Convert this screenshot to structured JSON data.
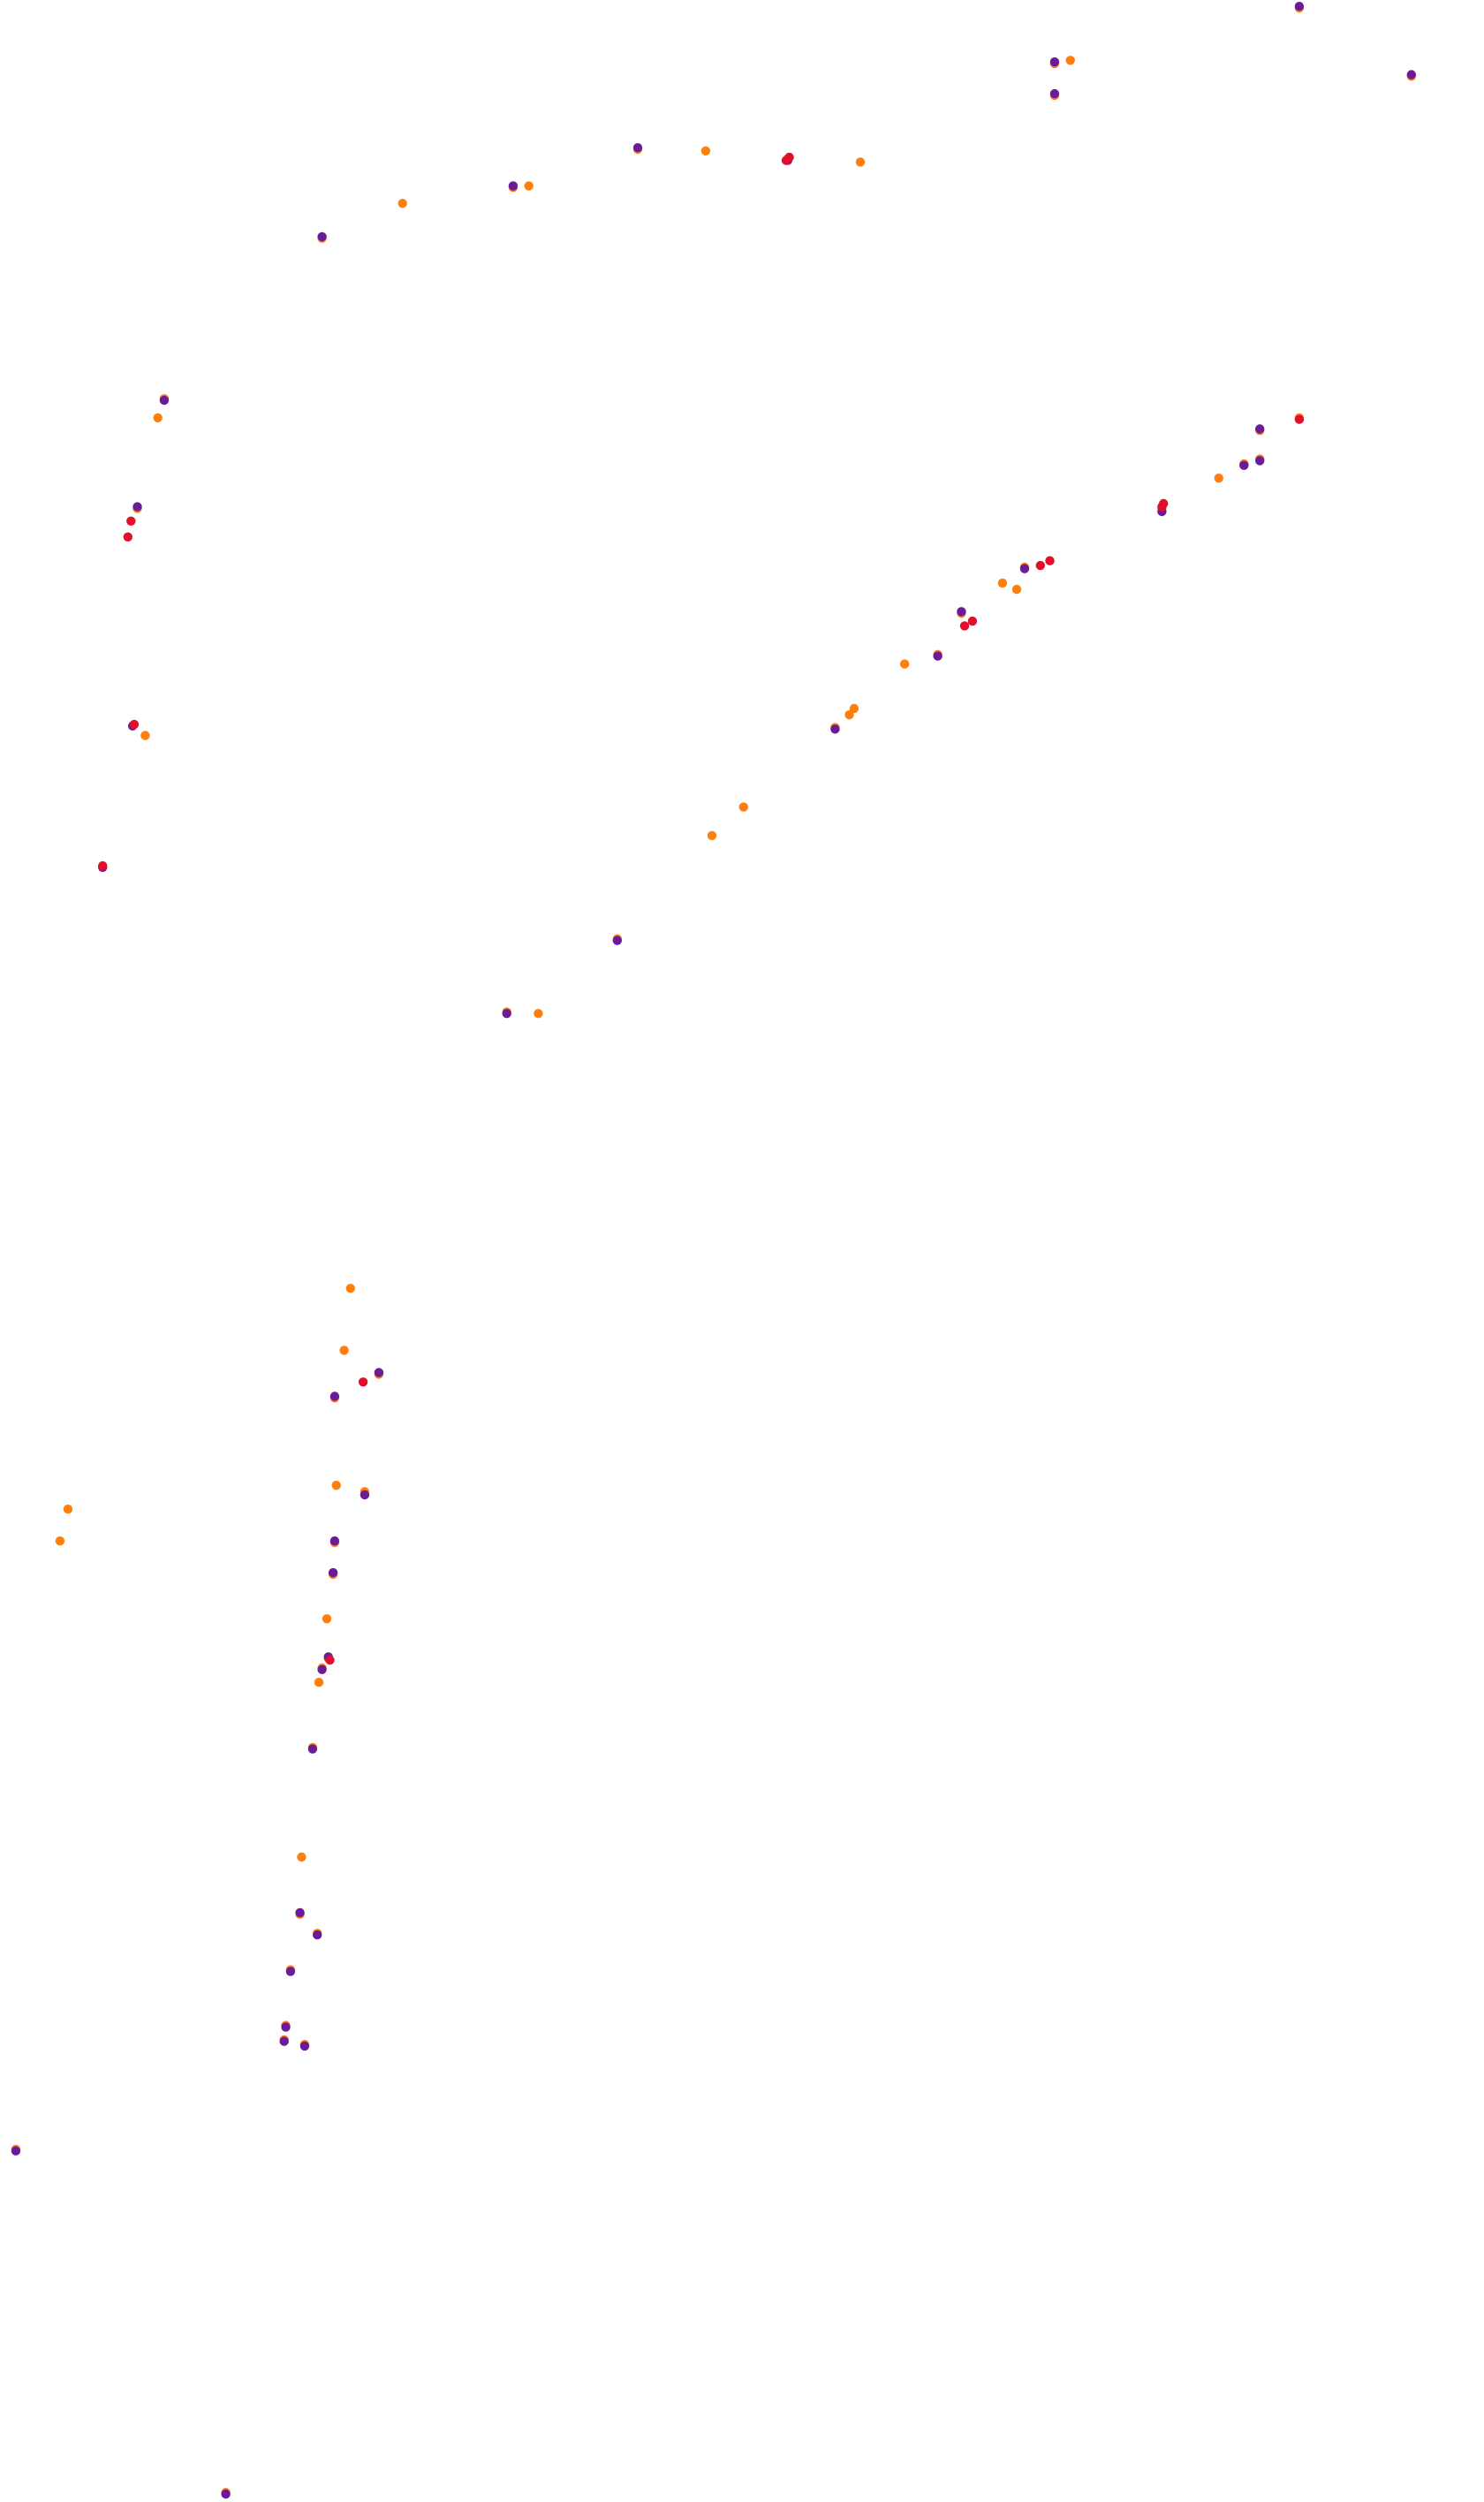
{
  "chart_data": {
    "type": "scatter",
    "title": "",
    "xlabel": "",
    "ylabel": "",
    "xlim": [
      0,
      940
    ],
    "ylim": [
      0,
      1575
    ],
    "grid": false,
    "axes_visible": false,
    "legend": "none",
    "colors": {
      "orange": "#ff7f0e",
      "purple": "#6a1b9a",
      "red": "#e0102a"
    },
    "series": [
      {
        "color": "orange",
        "points": [
          [
            823,
            5
          ],
          [
            894,
            48
          ],
          [
            668,
            40
          ],
          [
            678,
            38
          ],
          [
            668,
            60
          ],
          [
            404,
            94
          ],
          [
            447,
            95
          ],
          [
            499,
            100
          ],
          [
            545,
            102
          ],
          [
            325,
            118
          ],
          [
            335,
            117
          ],
          [
            255,
            128
          ],
          [
            204,
            150
          ],
          [
            104,
            251
          ],
          [
            100,
            263
          ],
          [
            87,
            320
          ],
          [
            92,
            463
          ],
          [
            823,
            263
          ],
          [
            798,
            271
          ],
          [
            788,
            292
          ],
          [
            798,
            289
          ],
          [
            772,
            301
          ],
          [
            736,
            320
          ],
          [
            649,
            357
          ],
          [
            635,
            367
          ],
          [
            644,
            371
          ],
          [
            609,
            386
          ],
          [
            594,
            412
          ],
          [
            573,
            418
          ],
          [
            541,
            446
          ],
          [
            538,
            450
          ],
          [
            529,
            458
          ],
          [
            471,
            508
          ],
          [
            451,
            526
          ],
          [
            391,
            591
          ],
          [
            321,
            637
          ],
          [
            341,
            638
          ],
          [
            222,
            811
          ],
          [
            218,
            850
          ],
          [
            240,
            865
          ],
          [
            212,
            880
          ],
          [
            43,
            950
          ],
          [
            38,
            970
          ],
          [
            213,
            935
          ],
          [
            231,
            939
          ],
          [
            212,
            971
          ],
          [
            211,
            991
          ],
          [
            207,
            1019
          ],
          [
            208,
            1044
          ],
          [
            204,
            1050
          ],
          [
            202,
            1059
          ],
          [
            198,
            1100
          ],
          [
            191,
            1169
          ],
          [
            190,
            1205
          ],
          [
            201,
            1217
          ],
          [
            184,
            1240
          ],
          [
            181,
            1275
          ],
          [
            180,
            1284
          ],
          [
            193,
            1287
          ],
          [
            10,
            1353
          ],
          [
            143,
            1569
          ]
        ]
      },
      {
        "color": "purple",
        "points": [
          [
            823,
            4
          ],
          [
            894,
            47
          ],
          [
            668,
            39
          ],
          [
            668,
            59
          ],
          [
            404,
            93
          ],
          [
            499,
            101
          ],
          [
            325,
            117
          ],
          [
            204,
            149
          ],
          [
            104,
            252
          ],
          [
            87,
            319
          ],
          [
            84,
            457
          ],
          [
            65,
            546
          ],
          [
            798,
            270
          ],
          [
            788,
            293
          ],
          [
            798,
            290
          ],
          [
            736,
            322
          ],
          [
            649,
            358
          ],
          [
            609,
            385
          ],
          [
            594,
            413
          ],
          [
            529,
            459
          ],
          [
            391,
            592
          ],
          [
            321,
            638
          ],
          [
            240,
            864
          ],
          [
            212,
            879
          ],
          [
            231,
            941
          ],
          [
            212,
            970
          ],
          [
            211,
            990
          ],
          [
            208,
            1043
          ],
          [
            204,
            1051
          ],
          [
            198,
            1101
          ],
          [
            190,
            1204
          ],
          [
            201,
            1218
          ],
          [
            184,
            1241
          ],
          [
            181,
            1276
          ],
          [
            180,
            1285
          ],
          [
            193,
            1288
          ],
          [
            10,
            1354
          ],
          [
            143,
            1570
          ]
        ]
      },
      {
        "color": "red",
        "points": [
          [
            498,
            101
          ],
          [
            500,
            99
          ],
          [
            83,
            328
          ],
          [
            81,
            338
          ],
          [
            85,
            456
          ],
          [
            65,
            545
          ],
          [
            823,
            264
          ],
          [
            737,
            317
          ],
          [
            736,
            319
          ],
          [
            665,
            353
          ],
          [
            659,
            356
          ],
          [
            611,
            394
          ],
          [
            616,
            391
          ],
          [
            230,
            870
          ],
          [
            209,
            1045
          ]
        ]
      }
    ]
  }
}
